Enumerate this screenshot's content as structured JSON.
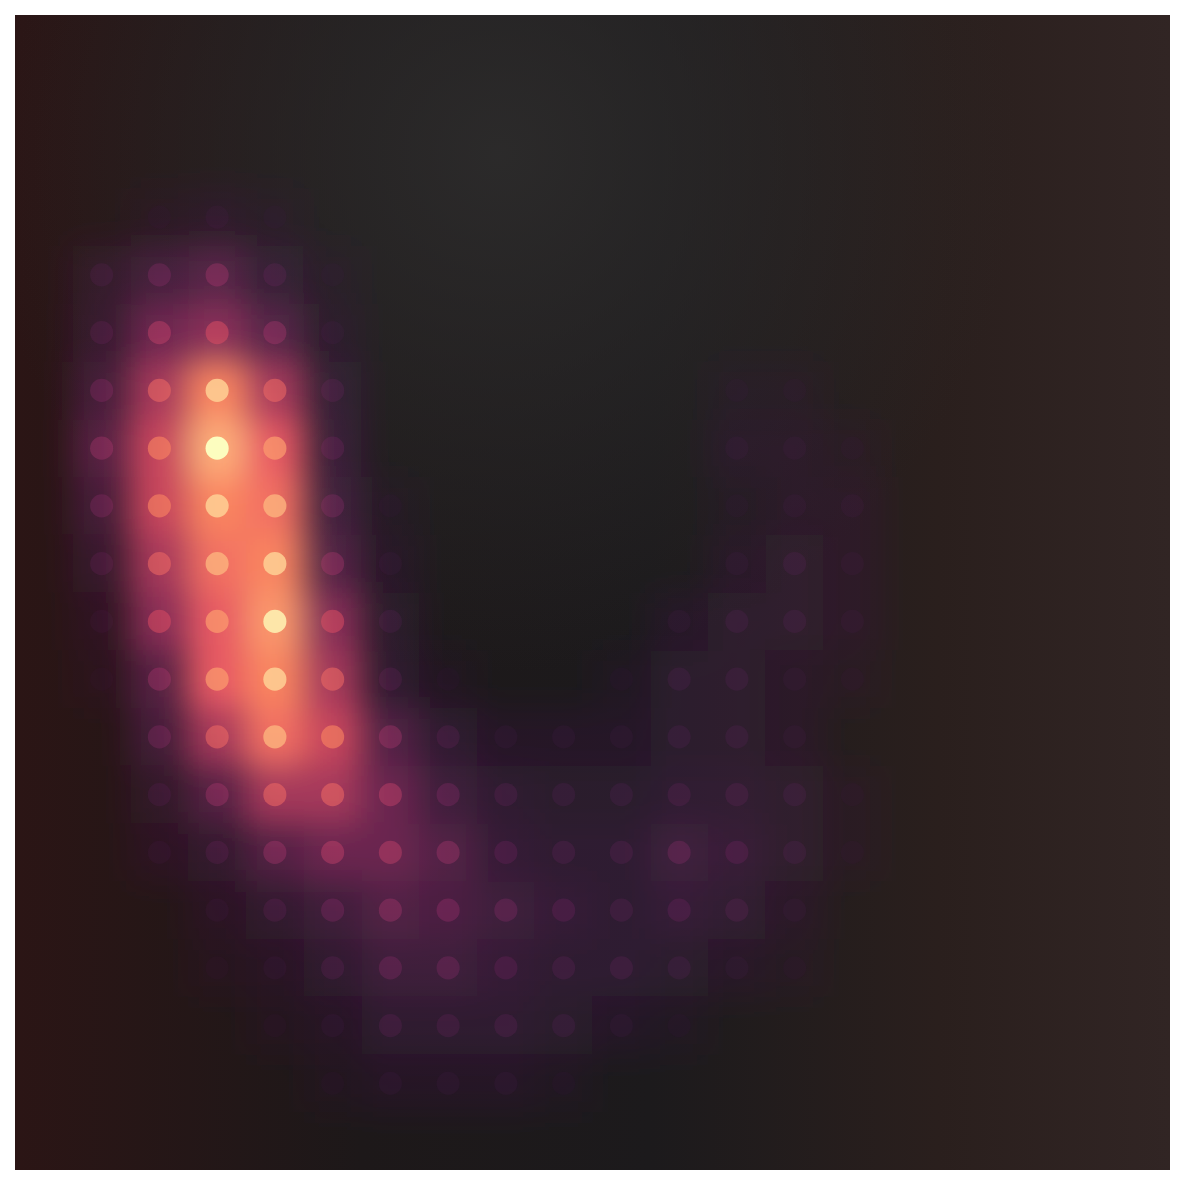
{
  "chart_data": {
    "type": "heatmap",
    "tick_labels": false,
    "zlim": [
      0,
      100
    ],
    "cells": [
      [
        0,
        0,
        0,
        0,
        0,
        0,
        0,
        0,
        0,
        0,
        0,
        0,
        0,
        0,
        0,
        0,
        0,
        0,
        0,
        0
      ],
      [
        0,
        0,
        0,
        0,
        0,
        0,
        0,
        0,
        0,
        0,
        0,
        0,
        0,
        0,
        0,
        0,
        0,
        0,
        0,
        0
      ],
      [
        0,
        0,
        0,
        0,
        0,
        0,
        0,
        0,
        0,
        0,
        0,
        0,
        0,
        0,
        0,
        0,
        0,
        0,
        0,
        0
      ],
      [
        0,
        0,
        3,
        5,
        3,
        0,
        0,
        0,
        0,
        0,
        0,
        0,
        0,
        0,
        0,
        0,
        0,
        0,
        0,
        0
      ],
      [
        0,
        8,
        15,
        20,
        10,
        3,
        0,
        0,
        0,
        0,
        0,
        0,
        0,
        0,
        0,
        0,
        0,
        0,
        0,
        0
      ],
      [
        0,
        10,
        25,
        30,
        20,
        5,
        0,
        0,
        0,
        0,
        0,
        0,
        0,
        0,
        0,
        0,
        0,
        0,
        0,
        0
      ],
      [
        0,
        15,
        35,
        55,
        35,
        10,
        0,
        0,
        0,
        0,
        0,
        0,
        3,
        3,
        0,
        0,
        0,
        0,
        0,
        0
      ],
      [
        0,
        20,
        40,
        65,
        45,
        12,
        0,
        0,
        0,
        0,
        0,
        0,
        5,
        5,
        3,
        0,
        0,
        0,
        0,
        0
      ],
      [
        0,
        15,
        40,
        55,
        50,
        15,
        3,
        0,
        0,
        0,
        0,
        0,
        3,
        5,
        5,
        0,
        0,
        0,
        0,
        0
      ],
      [
        0,
        10,
        35,
        50,
        55,
        20,
        5,
        0,
        0,
        0,
        0,
        0,
        5,
        8,
        5,
        0,
        0,
        0,
        0,
        0
      ],
      [
        0,
        5,
        30,
        45,
        60,
        30,
        8,
        0,
        0,
        0,
        0,
        5,
        8,
        8,
        5,
        0,
        0,
        0,
        0,
        0
      ],
      [
        0,
        3,
        20,
        45,
        55,
        35,
        10,
        3,
        0,
        0,
        3,
        8,
        8,
        5,
        3,
        0,
        0,
        0,
        0,
        0
      ],
      [
        0,
        0,
        15,
        35,
        50,
        40,
        20,
        10,
        5,
        5,
        5,
        8,
        8,
        5,
        0,
        0,
        0,
        0,
        0,
        0
      ],
      [
        0,
        0,
        8,
        20,
        35,
        35,
        25,
        15,
        10,
        8,
        8,
        10,
        10,
        8,
        3,
        0,
        0,
        0,
        0,
        0
      ],
      [
        0,
        0,
        5,
        10,
        20,
        25,
        25,
        20,
        12,
        10,
        10,
        15,
        12,
        8,
        3,
        0,
        0,
        0,
        0,
        0
      ],
      [
        0,
        0,
        0,
        5,
        10,
        15,
        20,
        18,
        15,
        12,
        10,
        12,
        10,
        5,
        0,
        0,
        0,
        0,
        0,
        0
      ],
      [
        0,
        0,
        0,
        3,
        5,
        10,
        15,
        15,
        12,
        10,
        10,
        8,
        5,
        3,
        0,
        0,
        0,
        0,
        0,
        0
      ],
      [
        0,
        0,
        0,
        0,
        3,
        5,
        10,
        10,
        10,
        8,
        5,
        3,
        0,
        0,
        0,
        0,
        0,
        0,
        0,
        0
      ],
      [
        0,
        0,
        0,
        0,
        0,
        3,
        5,
        5,
        5,
        3,
        0,
        0,
        0,
        0,
        0,
        0,
        0,
        0,
        0,
        0
      ],
      [
        0,
        0,
        0,
        0,
        0,
        0,
        0,
        0,
        0,
        0,
        0,
        0,
        0,
        0,
        0,
        0,
        0,
        0,
        0,
        0
      ]
    ]
  }
}
